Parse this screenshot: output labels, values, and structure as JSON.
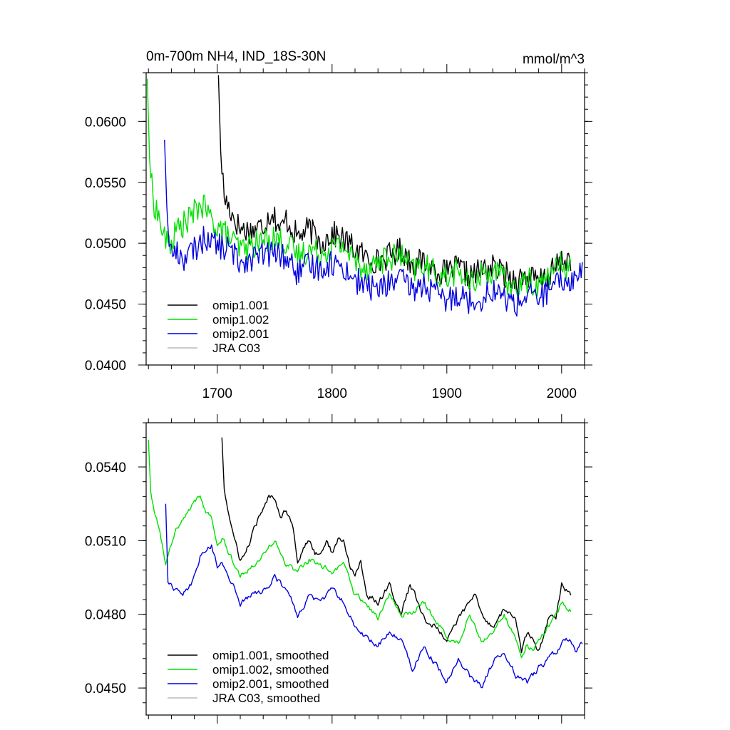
{
  "chart_data": [
    {
      "type": "line",
      "title": "0m-700m NH4, IND_18S-30N",
      "units": "mmol/m^3",
      "xlim": [
        1638,
        2020
      ],
      "ylim": [
        0.04,
        0.064
      ],
      "xticks": [
        1700,
        1800,
        1900,
        2000
      ],
      "xtick_labels": [
        "1700",
        "1800",
        "1900",
        "2000"
      ],
      "yticks": [
        0.04,
        0.045,
        0.05,
        0.055,
        0.06
      ],
      "ytick_labels": [
        "0.0400",
        "0.0450",
        "0.0500",
        "0.0550",
        "0.0600"
      ],
      "legend": [
        "omip1.001",
        "omip1.002",
        "omip2.001",
        "JRA C03"
      ],
      "legend_position": "bottom-left",
      "grid": false,
      "series": [
        {
          "name": "omip1.001",
          "color": "#000000",
          "x": [
            1701,
            1703,
            1706,
            1710,
            1715,
            1720,
            1730,
            1740,
            1748,
            1755,
            1760,
            1770,
            1780,
            1790,
            1800,
            1810,
            1820,
            1830,
            1840,
            1850,
            1860,
            1870,
            1880,
            1890,
            1900,
            1910,
            1920,
            1930,
            1940,
            1950,
            1960,
            1970,
            1980,
            1990,
            2000,
            2008
          ],
          "y": [
            0.0638,
            0.0575,
            0.0538,
            0.053,
            0.052,
            0.0512,
            0.051,
            0.0515,
            0.0527,
            0.051,
            0.052,
            0.0505,
            0.0512,
            0.05,
            0.0508,
            0.0503,
            0.0495,
            0.0488,
            0.0485,
            0.049,
            0.0495,
            0.0483,
            0.0485,
            0.0478,
            0.0475,
            0.048,
            0.0472,
            0.0478,
            0.048,
            0.0475,
            0.047,
            0.0473,
            0.0468,
            0.0475,
            0.0485,
            0.0488
          ]
        },
        {
          "name": "omip1.002",
          "color": "#00e000",
          "x": [
            1639,
            1641,
            1644,
            1648,
            1652,
            1656,
            1660,
            1665,
            1670,
            1675,
            1680,
            1685,
            1690,
            1695,
            1700,
            1705,
            1710,
            1720,
            1730,
            1740,
            1750,
            1760,
            1770,
            1780,
            1790,
            1800,
            1810,
            1820,
            1830,
            1840,
            1850,
            1860,
            1870,
            1880,
            1890,
            1900,
            1910,
            1920,
            1930,
            1940,
            1950,
            1960,
            1970,
            1980,
            1990,
            2000,
            2008
          ],
          "y": [
            0.0635,
            0.057,
            0.0535,
            0.0525,
            0.051,
            0.05,
            0.05,
            0.0512,
            0.0515,
            0.052,
            0.0525,
            0.0532,
            0.0528,
            0.0518,
            0.0515,
            0.051,
            0.0505,
            0.0495,
            0.0498,
            0.0502,
            0.0505,
            0.05,
            0.049,
            0.0495,
            0.0492,
            0.0497,
            0.0498,
            0.0485,
            0.048,
            0.0485,
            0.0488,
            0.049,
            0.0478,
            0.0482,
            0.0475,
            0.0472,
            0.0478,
            0.0465,
            0.0475,
            0.0477,
            0.047,
            0.0462,
            0.047,
            0.0465,
            0.0475,
            0.0483,
            0.048
          ]
        },
        {
          "name": "omip2.001",
          "color": "#0000e0",
          "x": [
            1654,
            1656,
            1659,
            1665,
            1670,
            1675,
            1680,
            1685,
            1690,
            1695,
            1700,
            1710,
            1720,
            1730,
            1740,
            1750,
            1760,
            1770,
            1780,
            1790,
            1800,
            1810,
            1820,
            1830,
            1840,
            1850,
            1860,
            1870,
            1880,
            1890,
            1900,
            1910,
            1920,
            1930,
            1940,
            1950,
            1960,
            1970,
            1980,
            1990,
            2000,
            2010,
            2018
          ],
          "y": [
            0.0585,
            0.053,
            0.0493,
            0.0492,
            0.0488,
            0.049,
            0.0495,
            0.05,
            0.0505,
            0.0503,
            0.0498,
            0.0495,
            0.0485,
            0.0488,
            0.049,
            0.0492,
            0.0488,
            0.0475,
            0.0482,
            0.048,
            0.0484,
            0.048,
            0.047,
            0.0465,
            0.0462,
            0.0468,
            0.047,
            0.0462,
            0.0466,
            0.0458,
            0.0452,
            0.046,
            0.0452,
            0.0455,
            0.0462,
            0.0455,
            0.045,
            0.0458,
            0.0455,
            0.0462,
            0.0468,
            0.047,
            0.0478
          ]
        },
        {
          "name": "JRA C03",
          "color": "#bbbbbb",
          "x": [],
          "y": []
        }
      ]
    },
    {
      "type": "line",
      "title": "",
      "units": "",
      "xlim": [
        1638,
        2020
      ],
      "ylim": [
        0.0439,
        0.0558
      ],
      "xticks": [
        1700,
        1800,
        1900,
        2000
      ],
      "xtick_labels": [
        "",
        "",
        "",
        ""
      ],
      "yticks": [
        0.045,
        0.048,
        0.051,
        0.054
      ],
      "ytick_labels": [
        "0.0450",
        "0.0480",
        "0.0510",
        "0.0540"
      ],
      "legend": [
        "omip1.001, smoothed",
        "omip1.002, smoothed",
        "omip2.001, smoothed",
        "JRA C03, smoothed"
      ],
      "legend_position": "bottom-left",
      "grid": false,
      "series": [
        {
          "name": "omip1.001, smoothed",
          "color": "#000000",
          "x": [
            1704,
            1706,
            1710,
            1715,
            1720,
            1725,
            1730,
            1735,
            1740,
            1745,
            1750,
            1755,
            1760,
            1765,
            1770,
            1775,
            1780,
            1785,
            1790,
            1795,
            1800,
            1805,
            1810,
            1815,
            1820,
            1825,
            1830,
            1840,
            1850,
            1860,
            1868,
            1875,
            1880,
            1890,
            1900,
            1910,
            1920,
            1925,
            1930,
            1940,
            1950,
            1960,
            1965,
            1970,
            1975,
            1980,
            1990,
            1995,
            2000,
            2008
          ],
          "y": [
            0.0552,
            0.0531,
            0.0521,
            0.051,
            0.0502,
            0.0505,
            0.0512,
            0.0518,
            0.0522,
            0.0528,
            0.0528,
            0.052,
            0.0523,
            0.0518,
            0.0502,
            0.0507,
            0.051,
            0.0505,
            0.0505,
            0.051,
            0.0505,
            0.051,
            0.051,
            0.05,
            0.0495,
            0.0502,
            0.0488,
            0.0485,
            0.0492,
            0.048,
            0.0492,
            0.0485,
            0.0478,
            0.0475,
            0.047,
            0.0478,
            0.0485,
            0.0488,
            0.048,
            0.0475,
            0.0482,
            0.0478,
            0.0465,
            0.0472,
            0.047,
            0.0465,
            0.048,
            0.0478,
            0.0492,
            0.0488
          ]
        },
        {
          "name": "omip1.002, smoothed",
          "color": "#00e000",
          "x": [
            1640,
            1642,
            1645,
            1650,
            1655,
            1660,
            1665,
            1670,
            1675,
            1680,
            1685,
            1690,
            1695,
            1700,
            1705,
            1710,
            1715,
            1720,
            1725,
            1730,
            1740,
            1750,
            1760,
            1770,
            1780,
            1790,
            1800,
            1810,
            1820,
            1830,
            1840,
            1850,
            1860,
            1870,
            1880,
            1890,
            1900,
            1910,
            1920,
            1925,
            1930,
            1940,
            1950,
            1960,
            1965,
            1970,
            1975,
            1980,
            1990,
            2000,
            2008
          ],
          "y": [
            0.0551,
            0.053,
            0.0522,
            0.0515,
            0.05,
            0.0508,
            0.0515,
            0.0518,
            0.0522,
            0.0525,
            0.0528,
            0.0522,
            0.052,
            0.051,
            0.0512,
            0.0505,
            0.05,
            0.0496,
            0.0498,
            0.05,
            0.0505,
            0.051,
            0.05,
            0.0497,
            0.0502,
            0.05,
            0.0497,
            0.05,
            0.0488,
            0.0485,
            0.0478,
            0.0488,
            0.048,
            0.048,
            0.0485,
            0.0478,
            0.047,
            0.0468,
            0.048,
            0.0475,
            0.047,
            0.0472,
            0.048,
            0.047,
            0.0462,
            0.0468,
            0.0465,
            0.047,
            0.0476,
            0.0485,
            0.0482
          ]
        },
        {
          "name": "omip2.001, smoothed",
          "color": "#0000e0",
          "x": [
            1655,
            1657,
            1660,
            1665,
            1670,
            1675,
            1680,
            1685,
            1690,
            1695,
            1700,
            1705,
            1710,
            1715,
            1720,
            1725,
            1730,
            1740,
            1750,
            1760,
            1770,
            1780,
            1790,
            1800,
            1810,
            1820,
            1830,
            1840,
            1850,
            1860,
            1870,
            1880,
            1890,
            1900,
            1910,
            1920,
            1930,
            1940,
            1950,
            1960,
            1970,
            1980,
            1990,
            2000,
            2008,
            2012,
            2018
          ],
          "y": [
            0.0525,
            0.0493,
            0.0492,
            0.049,
            0.0488,
            0.049,
            0.0495,
            0.0503,
            0.0507,
            0.0508,
            0.05,
            0.05,
            0.0495,
            0.0492,
            0.0485,
            0.0487,
            0.0488,
            0.049,
            0.0495,
            0.049,
            0.048,
            0.0487,
            0.0485,
            0.049,
            0.0485,
            0.0475,
            0.047,
            0.0468,
            0.0472,
            0.047,
            0.0458,
            0.0467,
            0.046,
            0.0452,
            0.0462,
            0.0455,
            0.045,
            0.046,
            0.0465,
            0.0455,
            0.0452,
            0.0458,
            0.0462,
            0.0468,
            0.047,
            0.0466,
            0.0468
          ]
        },
        {
          "name": "JRA C03, smoothed",
          "color": "#bbbbbb",
          "x": [],
          "y": []
        }
      ]
    }
  ]
}
